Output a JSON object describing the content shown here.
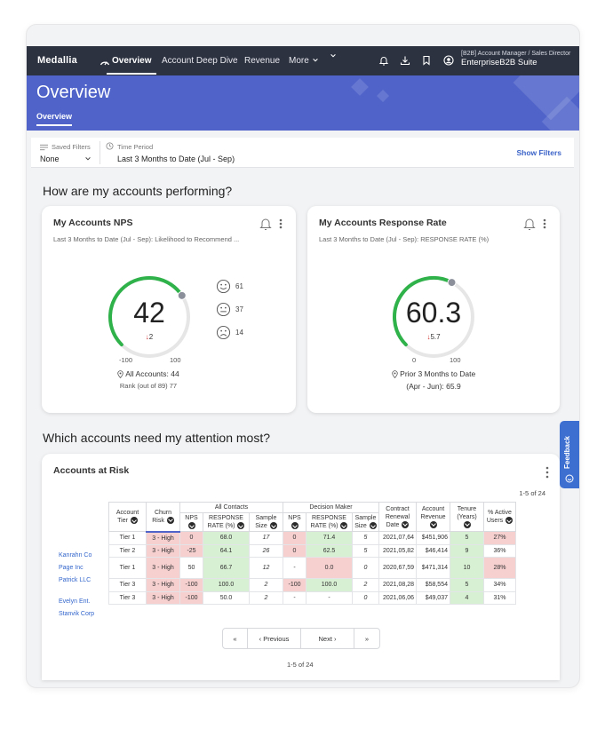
{
  "nav": {
    "logo": "Medallia",
    "tabs": [
      "Overview",
      "Account Deep Dive",
      "Revenue",
      "More"
    ],
    "user_role": "[B2B] Account Manager / Sales Director",
    "suite": "EnterpriseB2B Suite"
  },
  "banner": {
    "title": "Overview",
    "subtab": "Overview"
  },
  "filters": {
    "saved_filters_label": "Saved Filters",
    "saved_filters_value": "None",
    "time_period_label": "Time Period",
    "time_period_value": "Last 3 Months to Date (Jul - Sep)",
    "show_filters": "Show Filters"
  },
  "sections": {
    "performing": "How are my accounts performing?",
    "attention": "Which accounts need my attention most?"
  },
  "nps_card": {
    "title": "My Accounts NPS",
    "subtitle": "Last 3 Months to Date (Jul - Sep): Likelihood to Recommend ...",
    "value": "42",
    "delta": "2",
    "axis_min": "-100",
    "axis_max": "100",
    "gauge_fraction": 0.71,
    "promoters": "61",
    "passives": "37",
    "detractors": "14",
    "all_accounts": "All Accounts: 44",
    "rank": "Rank (out of 89) 77"
  },
  "rr_card": {
    "title": "My Accounts Response Rate",
    "subtitle": "Last 3 Months to Date (Jul - Sep): RESPONSE RATE (%)",
    "value": "60.3",
    "delta": "5.7",
    "axis_min": "0",
    "axis_max": "100",
    "gauge_fraction": 0.603,
    "prior_line1": "Prior 3 Months to Date",
    "prior_line2": "(Apr - Jun): 65.9"
  },
  "risk": {
    "title": "Accounts at Risk",
    "range_top": "1-5 of 24",
    "range_bottom": "1-5 of 24",
    "group_headers": {
      "all_contacts": "All Contacts",
      "decision_maker": "Decision Maker"
    },
    "headers": {
      "tier": "Account Tier",
      "churn": "Churn Risk",
      "nps": "NPS",
      "response": "RESPONSE RATE (%)",
      "sample": "Sample Size",
      "renewal": "Contract Renewal Date",
      "revenue": "Account Revenue",
      "tenure": "Tenure (Years)",
      "active": "% Active Users"
    },
    "accounts": [
      "Kanrahn Co",
      "Page Inc",
      "Patrick LLC",
      "Evelyn Ent.",
      "Stanvik Corp"
    ],
    "rows": [
      {
        "tier": "Tier 1",
        "churn": "3 - High",
        "nps": "0",
        "rr": "68.0",
        "ss": "17",
        "dnps": "0",
        "drr": "71.4",
        "dss": "5",
        "renewal": "2021,07,64",
        "revenue": "$451,906",
        "tenure": "5",
        "active": "27%"
      },
      {
        "tier": "Tier 2",
        "churn": "3 - High",
        "nps": "-25",
        "rr": "64.1",
        "ss": "26",
        "dnps": "0",
        "drr": "62.5",
        "dss": "5",
        "renewal": "2021,05,82",
        "revenue": "$46,414",
        "tenure": "9",
        "active": "36%"
      },
      {
        "tier": "Tier 1",
        "churn": "3 - High",
        "nps": "50",
        "rr": "66.7",
        "ss": "12",
        "dnps": "-",
        "drr": "0.0",
        "dss": "0",
        "renewal": "2020,67,59",
        "revenue": "$471,314",
        "tenure": "10",
        "active": "28%"
      },
      {
        "tier": "Tier 3",
        "churn": "3 - High",
        "nps": "-100",
        "rr": "100.0",
        "ss": "2",
        "dnps": "-100",
        "drr": "100.0",
        "dss": "2",
        "renewal": "2021,08,28",
        "revenue": "$58,554",
        "tenure": "5",
        "active": "34%"
      },
      {
        "tier": "Tier 3",
        "churn": "3 - High",
        "nps": "-100",
        "rr": "50.0",
        "ss": "2",
        "dnps": "-",
        "drr": "-",
        "dss": "0",
        "renewal": "2021,06,06",
        "revenue": "$49,037",
        "tenure": "4",
        "active": "31%"
      }
    ],
    "row_colors": [
      {
        "churn": "red",
        "nps": "red",
        "rr": "green",
        "dnps": "red",
        "drr": "green",
        "tenure": "green",
        "active": "red"
      },
      {
        "churn": "red",
        "nps": "red",
        "rr": "green",
        "dnps": "red",
        "drr": "green",
        "tenure": "green",
        "active": "plain"
      },
      {
        "churn": "red",
        "nps": "plain",
        "rr": "green",
        "dnps": "plain",
        "drr": "red",
        "tenure": "green",
        "active": "red"
      },
      {
        "churn": "red",
        "nps": "red",
        "rr": "green",
        "dnps": "red",
        "drr": "green",
        "tenure": "green",
        "active": "plain"
      },
      {
        "churn": "red",
        "nps": "red",
        "rr": "plain",
        "dnps": "plain",
        "drr": "plain",
        "tenure": "green",
        "active": "plain"
      }
    ]
  },
  "pager": {
    "first": "«",
    "prev": "‹ Previous",
    "next": "Next ›",
    "last": "»"
  },
  "feedback": "Feedback",
  "colors": {
    "gauge_green": "#2fb24a",
    "gauge_track": "#e6e6e6",
    "banner": "#4f63c9",
    "nav": "#2c3240"
  }
}
